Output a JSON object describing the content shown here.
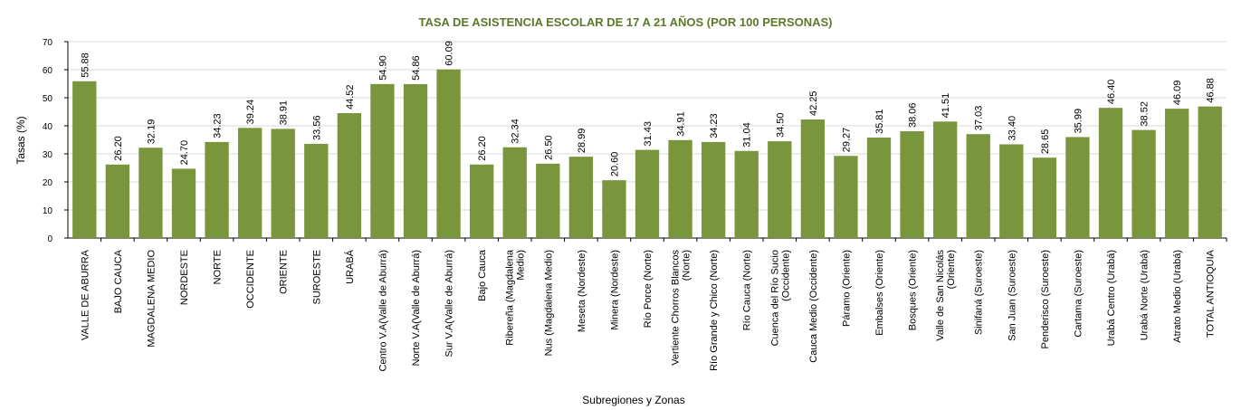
{
  "chart_data": {
    "type": "bar",
    "title": "TASA DE ASISTENCIA ESCOLAR DE 17 A 21 AÑOS (POR 100 PERSONAS)",
    "xlabel": "Subregiones y Zonas",
    "ylabel": "Tasas (%)",
    "ylim": [
      0,
      70
    ],
    "yticks": [
      0,
      10,
      20,
      30,
      40,
      50,
      60,
      70
    ],
    "grid": true,
    "bar_color": "#7a963c",
    "categories": [
      "VALLE DE ABURRA",
      "BAJO CAUCA",
      "MAGDALENA MEDIO",
      "NORDESTE",
      "NORTE",
      "OCCIDENTE",
      "ORIENTE",
      "SUROESTE",
      "URABÁ",
      "Centro V.A(Valle de Aburrá)",
      "Norte V.A(Valle de Aburrá)",
      "Sur V.A(Valle de Aburrá)",
      "Bajo Cauca",
      "Ribereña (Magdalena|Medio)",
      "Nus (Magdalena Medio)",
      "Meseta (Nordeste)",
      "Minera (Nordeste)",
      "Río Porce (Norte)",
      "Vertiente Chorros Blancos|(Norte)",
      "Río Grande y Chico (Norte)",
      "Río Cauca (Norte)",
      "Cuenca del Río Sucio|(Occidente)",
      "Cauca Medio (Occidente)",
      "Páramo (Oriente)",
      "Embalses (Oriente)",
      "Bosques (Oriente)",
      "Valle de San Nicolás|(Oriente)",
      "Sinifaná (Suroeste)",
      "San Juan (Suroeste)",
      "Penderisco (Suroeste)",
      "Cartama (Suroeste)",
      "Urabá Centro (Urabá)",
      "Urabá Norte (Urabá)",
      "Atrato Medio (Urabá)",
      "TOTAL ANTIOQUIA"
    ],
    "values": [
      55.88,
      26.2,
      32.19,
      24.7,
      34.23,
      39.24,
      38.91,
      33.56,
      44.52,
      54.9,
      54.86,
      60.09,
      26.2,
      32.34,
      26.5,
      28.99,
      20.6,
      31.43,
      34.91,
      34.23,
      31.04,
      34.5,
      42.25,
      29.27,
      35.81,
      38.06,
      41.51,
      37.03,
      33.4,
      28.65,
      35.99,
      46.4,
      38.52,
      46.09,
      46.88
    ],
    "data_labels": [
      "55.88",
      "26.20",
      "32.19",
      "24.70",
      "34.23",
      "39.24",
      "38.91",
      "33.56",
      "44.52",
      "54.90",
      "54.86",
      "60.09",
      "26.20",
      "32.34",
      "26.50",
      "28.99",
      "20.60",
      "31.43",
      "34.91",
      "34.23",
      "31.04",
      "34.50",
      "42.25",
      "29.27",
      "35.81",
      "38.06",
      "41.51",
      "37.03",
      "33.40",
      "28.65",
      "35.99",
      "46.40",
      "38.52",
      "46.09",
      "46.88"
    ]
  }
}
